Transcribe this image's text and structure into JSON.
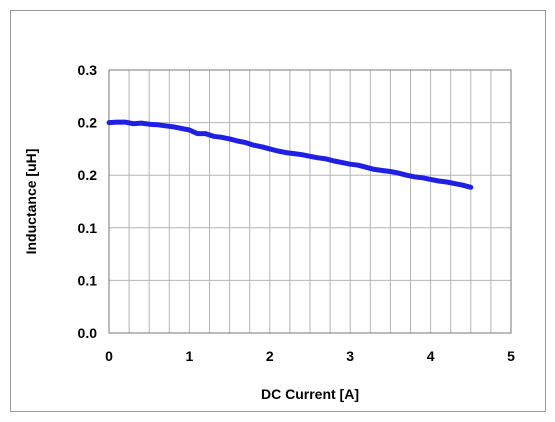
{
  "chart_data": {
    "type": "line",
    "title": "",
    "xlabel": "DC Current [A]",
    "ylabel": "Inductance [uH]",
    "xlim": [
      0,
      5
    ],
    "ylim": [
      0,
      0.25
    ],
    "x_ticks": [
      0,
      1,
      2,
      3,
      4,
      5
    ],
    "x_tick_labels": [
      "0",
      "1",
      "2",
      "3",
      "4",
      "5"
    ],
    "y_ticks": [
      0,
      0.05,
      0.1,
      0.15,
      0.2,
      0.25
    ],
    "y_tick_labels": [
      "0.0",
      "0.1",
      "0.1",
      "0.2",
      "0.2",
      "0.3"
    ],
    "x_minor_step": 0.25,
    "grid": true,
    "legend": "none",
    "series": [
      {
        "color": "#1f1fe6",
        "x": [
          0,
          0.1,
          0.2,
          0.3,
          0.4,
          0.5,
          0.6,
          0.7,
          0.8,
          0.9,
          1.0,
          1.1,
          1.2,
          1.3,
          1.4,
          1.5,
          1.6,
          1.7,
          1.8,
          1.9,
          2.0,
          2.1,
          2.2,
          2.3,
          2.4,
          2.5,
          2.6,
          2.7,
          2.8,
          2.9,
          3.0,
          3.1,
          3.2,
          3.3,
          3.4,
          3.5,
          3.6,
          3.7,
          3.8,
          3.9,
          4.0,
          4.1,
          4.2,
          4.3,
          4.4,
          4.5
        ],
        "y": [
          0.2,
          0.2005,
          0.2005,
          0.199,
          0.1995,
          0.1985,
          0.198,
          0.197,
          0.196,
          0.1945,
          0.193,
          0.1895,
          0.1895,
          0.187,
          0.186,
          0.1845,
          0.1825,
          0.181,
          0.1785,
          0.177,
          0.175,
          0.173,
          0.1715,
          0.1705,
          0.1695,
          0.168,
          0.1665,
          0.1655,
          0.1635,
          0.162,
          0.1605,
          0.1595,
          0.1575,
          0.1555,
          0.1545,
          0.1535,
          0.152,
          0.15,
          0.1485,
          0.1475,
          0.146,
          0.1445,
          0.1435,
          0.142,
          0.1405,
          0.1385
        ]
      }
    ]
  }
}
